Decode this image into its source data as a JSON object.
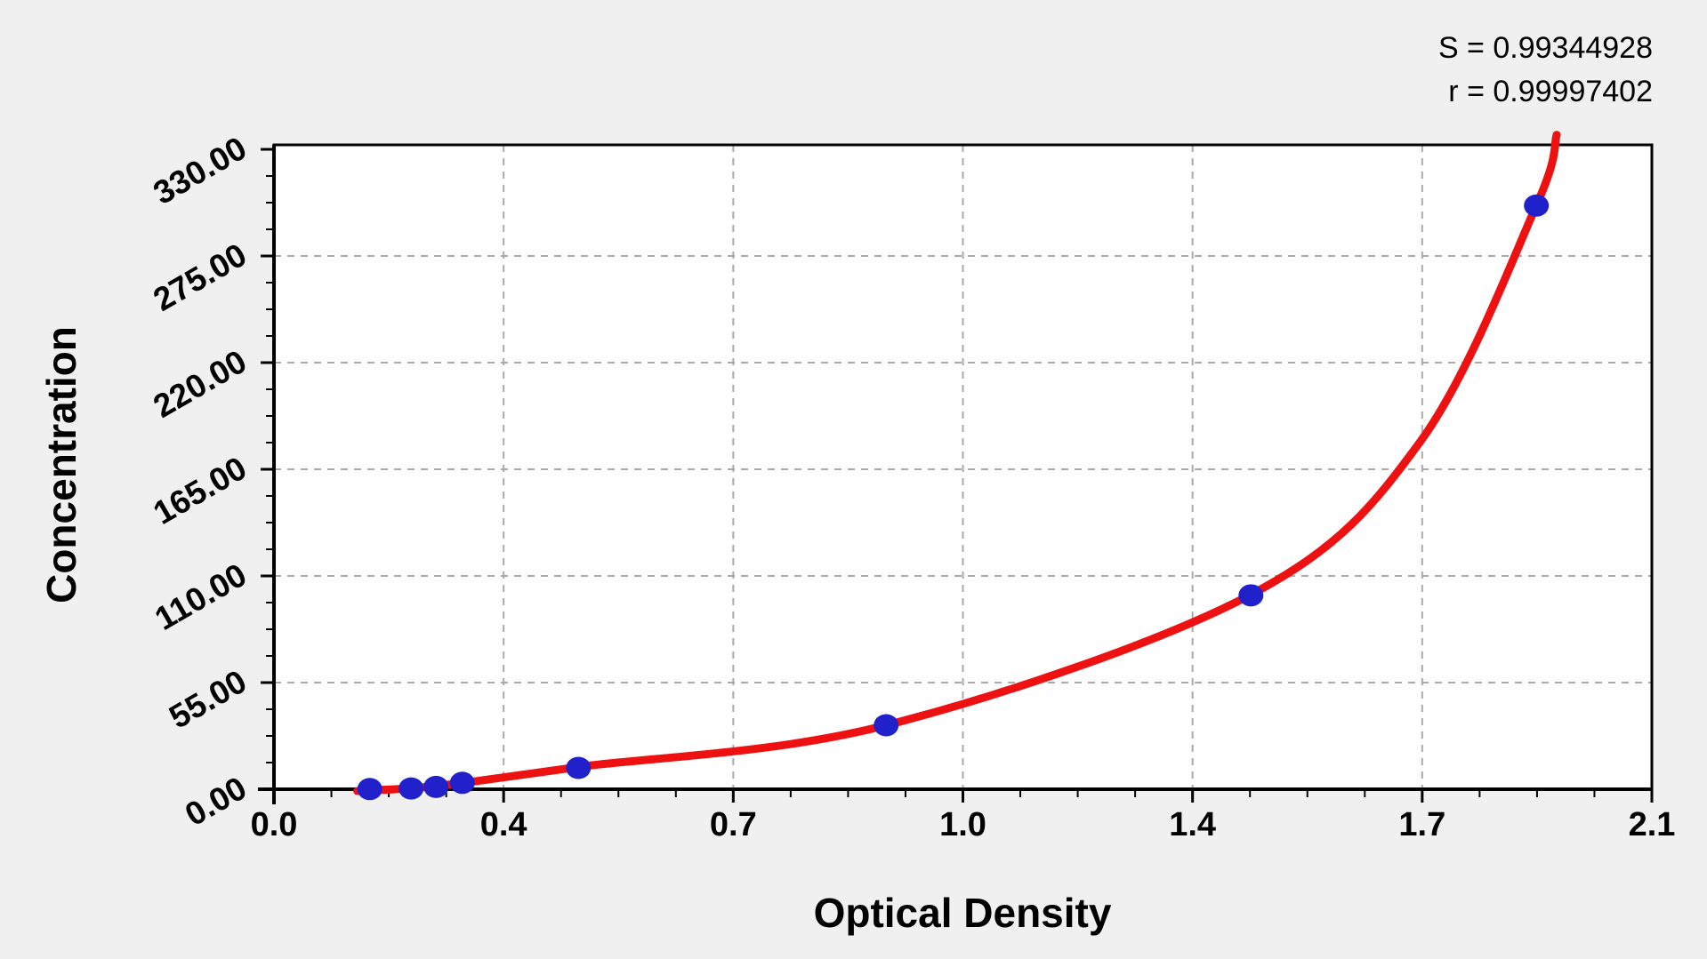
{
  "chart_data": {
    "type": "scatter",
    "title": "",
    "xlabel": "Optical Density",
    "ylabel": "Concentration",
    "legend": false,
    "grid": true,
    "x_axis": {
      "min": 0,
      "max": 2.1,
      "major_step": 0.35,
      "minors_per_major": 4,
      "tick_labels": [
        "0.0",
        "0.4",
        "0.7",
        "1.0",
        "1.4",
        "1.7",
        "2.1"
      ]
    },
    "y_axis": {
      "min": 0,
      "max": 332.3,
      "last_major": 330,
      "major_step": 55,
      "minors_per_major": 4,
      "tick_labels": [
        "0.00",
        "55.00",
        "110.00",
        "165.00",
        "220.00",
        "275.00",
        "330.00"
      ]
    },
    "points": [
      {
        "od": 0.146,
        "conc": 0.1
      },
      {
        "od": 0.209,
        "conc": 0.4
      },
      {
        "od": 0.247,
        "conc": 1.2
      },
      {
        "od": 0.287,
        "conc": 3.3
      },
      {
        "od": 0.464,
        "conc": 11.0
      },
      {
        "od": 0.933,
        "conc": 33.0
      },
      {
        "od": 1.489,
        "conc": 100.0
      },
      {
        "od": 1.924,
        "conc": 301.0
      }
    ],
    "fit_curve": {
      "samples": [
        [
          0.127,
          -0.9
        ],
        [
          0.209,
          0.5
        ],
        [
          0.287,
          3.2
        ],
        [
          0.464,
          11.5
        ],
        [
          0.933,
          33.0
        ],
        [
          1.489,
          100.4
        ],
        [
          1.747,
          179.2
        ],
        [
          1.924,
          301.1
        ],
        [
          1.955,
          337.5
        ]
      ]
    },
    "annotations": [
      {
        "text": "S = 0.99344928",
        "value": 0.99344928
      },
      {
        "text": "r = 0.99997402",
        "value": 0.99997402
      }
    ],
    "colors": {
      "page_bg": "#f0f0f0",
      "plot_bg": "#ffffff",
      "axis": "#000000",
      "grid": "#aaaaaa",
      "point": "#2121cc",
      "curve": "#ee1111"
    }
  }
}
